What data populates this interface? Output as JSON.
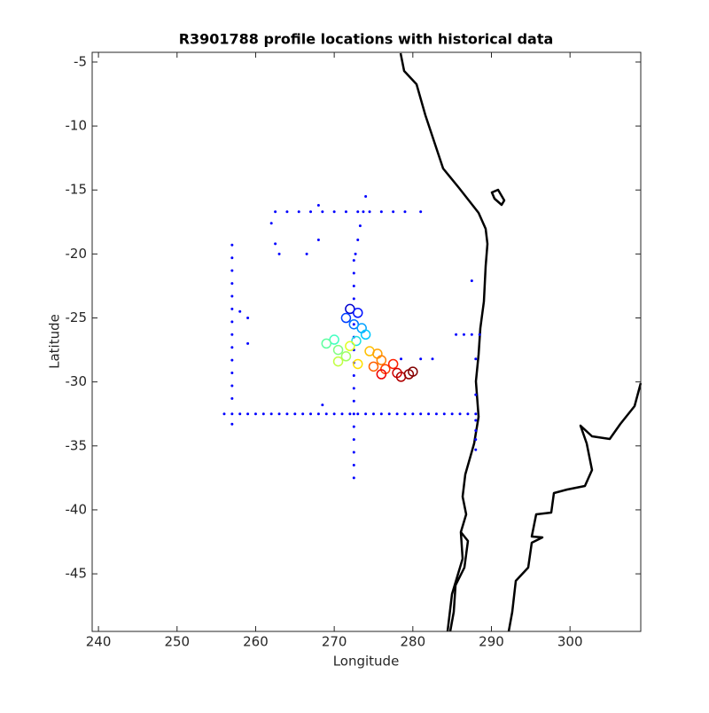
{
  "chart_data": {
    "type": "scatter",
    "title": "R3901788 profile locations with historical data",
    "xlabel": "Longitude",
    "ylabel": "Latitude",
    "xlim": [
      239.2,
      309.0
    ],
    "ylim": [
      -49.5,
      -4.24
    ],
    "xticks": [
      240,
      250,
      260,
      270,
      280,
      290,
      300
    ],
    "yticks": [
      -5,
      -10,
      -15,
      -20,
      -25,
      -30,
      -35,
      -40,
      -45
    ],
    "grid": false,
    "series": [
      {
        "color": "#0000ff",
        "marker": "dot",
        "x": [
          256,
          257,
          258,
          259,
          260,
          261,
          262,
          263,
          264,
          265,
          266,
          267,
          268,
          269,
          270,
          271,
          272,
          273,
          274,
          275,
          276,
          277,
          278,
          279,
          280,
          281,
          282,
          283,
          284,
          285,
          286,
          287,
          288,
          257,
          257,
          257,
          257,
          257,
          257,
          257,
          257,
          257,
          257,
          257,
          257,
          257,
          257,
          272.5,
          272.5,
          272.5,
          272.5,
          272.5,
          272.5,
          272.5,
          272.5,
          272.5,
          272.5,
          272.5,
          272.5,
          272.5,
          272.5,
          272.5,
          272.5,
          272.5,
          262.5,
          264,
          265.5,
          267,
          268.5,
          270,
          271.5,
          273,
          274.5,
          276,
          277.5,
          279,
          281,
          274,
          273.7,
          273.3,
          273,
          272.7,
          285.5,
          286.5,
          287.5,
          288.5,
          288,
          288,
          288,
          288,
          288,
          288,
          262,
          262.5,
          263,
          266.5,
          268,
          268,
          278.5,
          281,
          282.5,
          258,
          259,
          259,
          268.5,
          287.5
        ],
        "y": [
          -32.5,
          -32.5,
          -32.5,
          -32.5,
          -32.5,
          -32.5,
          -32.5,
          -32.5,
          -32.5,
          -32.5,
          -32.5,
          -32.5,
          -32.5,
          -32.5,
          -32.5,
          -32.5,
          -32.5,
          -32.5,
          -32.5,
          -32.5,
          -32.5,
          -32.5,
          -32.5,
          -32.5,
          -32.5,
          -32.5,
          -32.5,
          -32.5,
          -32.5,
          -32.5,
          -32.5,
          -32.5,
          -32.5,
          -19.3,
          -20.3,
          -21.3,
          -22.3,
          -23.3,
          -24.3,
          -25.3,
          -26.3,
          -27.3,
          -28.3,
          -29.3,
          -30.3,
          -31.3,
          -33.3,
          -20.5,
          -21.5,
          -22.5,
          -23.5,
          -25.5,
          -26.5,
          -27.5,
          -28.5,
          -29.5,
          -30.5,
          -31.5,
          -33.5,
          -34.5,
          -35.5,
          -36.5,
          -37.5,
          -32.5,
          -16.7,
          -16.7,
          -16.7,
          -16.7,
          -16.7,
          -16.7,
          -16.7,
          -16.7,
          -16.7,
          -16.7,
          -16.7,
          -16.7,
          -16.7,
          -15.5,
          -16.7,
          -17.8,
          -18.9,
          -20,
          -26.3,
          -26.3,
          -26.3,
          -26.3,
          -28.2,
          -31,
          -33,
          -33.8,
          -34.5,
          -35.3,
          -17.6,
          -19.2,
          -20,
          -20,
          -16.2,
          -18.9,
          -28.2,
          -28.2,
          -28.2,
          -24.5,
          -25,
          -27,
          -31.8,
          -22.1
        ]
      },
      {
        "marker": "circle",
        "x": [
          272,
          273,
          271.5,
          272.5,
          273.5,
          274,
          272.8,
          270,
          269,
          270.5,
          271.5,
          270.5,
          272,
          273,
          274.5,
          275.5,
          276,
          275,
          276.5,
          277.5,
          276,
          278,
          278.5,
          279.5,
          280
        ],
        "y": [
          -24.3,
          -24.6,
          -25,
          -25.5,
          -25.8,
          -26.3,
          -26.8,
          -26.7,
          -27,
          -27.5,
          -28,
          -28.4,
          -27.2,
          -28.6,
          -27.6,
          -27.8,
          -28.3,
          -28.8,
          -29,
          -28.6,
          -29.4,
          -29.3,
          -29.6,
          -29.4,
          -29.2
        ],
        "colors": [
          "#0000d0",
          "#0010ff",
          "#0040ff",
          "#0070ff",
          "#00a0ff",
          "#00c8ff",
          "#20e0e0",
          "#40ffc0",
          "#60ffa0",
          "#80ff80",
          "#a0ff60",
          "#c0ff40",
          "#e0ff20",
          "#ffe000",
          "#ffc000",
          "#ffa000",
          "#ff8000",
          "#ff6000",
          "#ff4000",
          "#ff2000",
          "#f00000",
          "#d00000",
          "#b00000",
          "#900000",
          "#800000"
        ]
      }
    ]
  }
}
